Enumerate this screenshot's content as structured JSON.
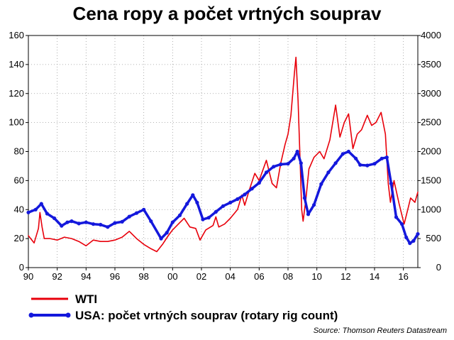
{
  "chart_data": {
    "type": "line",
    "title": "Cena ropy a počet vrtných souprav",
    "source": "Source: Thomson Reuters Datastream",
    "x_tick_labels": [
      "90",
      "92",
      "94",
      "96",
      "98",
      "00",
      "02",
      "04",
      "06",
      "08",
      "10",
      "12",
      "14",
      "16"
    ],
    "x_tick_years": [
      1990,
      1992,
      1994,
      1996,
      1998,
      2000,
      2002,
      2004,
      2006,
      2008,
      2010,
      2012,
      2014,
      2016
    ],
    "xlim": [
      1990,
      2017
    ],
    "y_left": {
      "lim": [
        0,
        160
      ],
      "ticks": [
        "0",
        "20",
        "40",
        "60",
        "80",
        "100",
        "120",
        "140",
        "160"
      ]
    },
    "y_right": {
      "lim": [
        0,
        4000
      ],
      "ticks": [
        "0",
        "500",
        "1000",
        "1500",
        "2000",
        "2500",
        "3000",
        "3500",
        "4000"
      ]
    },
    "grid": true,
    "legend_position": "bottom",
    "series": [
      {
        "name": "WTI",
        "axis": "left",
        "color": "#e8000b",
        "points": [
          [
            1990.0,
            22
          ],
          [
            1990.4,
            17
          ],
          [
            1990.7,
            27
          ],
          [
            1990.8,
            38
          ],
          [
            1990.95,
            28
          ],
          [
            1991.1,
            20
          ],
          [
            1991.5,
            20
          ],
          [
            1992.0,
            19
          ],
          [
            1992.5,
            21
          ],
          [
            1993.0,
            20
          ],
          [
            1993.5,
            18
          ],
          [
            1994.0,
            15
          ],
          [
            1994.5,
            19
          ],
          [
            1995.0,
            18
          ],
          [
            1995.5,
            18
          ],
          [
            1996.0,
            19
          ],
          [
            1996.5,
            21
          ],
          [
            1997.0,
            25
          ],
          [
            1997.5,
            20
          ],
          [
            1998.0,
            16
          ],
          [
            1998.5,
            13
          ],
          [
            1998.9,
            11
          ],
          [
            1999.3,
            16
          ],
          [
            1999.7,
            22
          ],
          [
            2000.0,
            26
          ],
          [
            2000.5,
            31
          ],
          [
            2000.8,
            34
          ],
          [
            2001.2,
            28
          ],
          [
            2001.6,
            27
          ],
          [
            2001.9,
            19
          ],
          [
            2002.3,
            26
          ],
          [
            2002.8,
            29
          ],
          [
            2003.0,
            35
          ],
          [
            2003.2,
            28
          ],
          [
            2003.6,
            30
          ],
          [
            2004.0,
            34
          ],
          [
            2004.5,
            40
          ],
          [
            2004.8,
            50
          ],
          [
            2005.0,
            43
          ],
          [
            2005.3,
            53
          ],
          [
            2005.7,
            65
          ],
          [
            2006.0,
            60
          ],
          [
            2006.5,
            74
          ],
          [
            2006.9,
            58
          ],
          [
            2007.2,
            55
          ],
          [
            2007.5,
            72
          ],
          [
            2007.8,
            85
          ],
          [
            2008.0,
            92
          ],
          [
            2008.2,
            105
          ],
          [
            2008.45,
            135
          ],
          [
            2008.55,
            145
          ],
          [
            2008.7,
            115
          ],
          [
            2008.85,
            70
          ],
          [
            2008.95,
            40
          ],
          [
            2009.05,
            32
          ],
          [
            2009.25,
            48
          ],
          [
            2009.45,
            68
          ],
          [
            2009.8,
            76
          ],
          [
            2010.2,
            80
          ],
          [
            2010.5,
            75
          ],
          [
            2010.9,
            88
          ],
          [
            2011.3,
            112
          ],
          [
            2011.6,
            90
          ],
          [
            2011.9,
            100
          ],
          [
            2012.2,
            106
          ],
          [
            2012.5,
            82
          ],
          [
            2012.8,
            92
          ],
          [
            2013.1,
            95
          ],
          [
            2013.5,
            105
          ],
          [
            2013.8,
            98
          ],
          [
            2014.1,
            100
          ],
          [
            2014.45,
            107
          ],
          [
            2014.75,
            92
          ],
          [
            2014.95,
            58
          ],
          [
            2015.1,
            45
          ],
          [
            2015.35,
            60
          ],
          [
            2015.7,
            44
          ],
          [
            2016.05,
            30
          ],
          [
            2016.3,
            40
          ],
          [
            2016.5,
            48
          ],
          [
            2016.8,
            45
          ],
          [
            2017.0,
            52
          ]
        ]
      },
      {
        "name": "USA: počet vrtných souprav (rotary rig count)",
        "axis": "right",
        "color": "#1418dc",
        "points": [
          [
            1990.0,
            950
          ],
          [
            1990.5,
            1000
          ],
          [
            1990.9,
            1100
          ],
          [
            1991.3,
            930
          ],
          [
            1991.8,
            850
          ],
          [
            1992.3,
            720
          ],
          [
            1992.7,
            780
          ],
          [
            1993.0,
            800
          ],
          [
            1993.5,
            760
          ],
          [
            1994.0,
            780
          ],
          [
            1994.5,
            750
          ],
          [
            1995.0,
            740
          ],
          [
            1995.5,
            700
          ],
          [
            1996.0,
            770
          ],
          [
            1996.5,
            790
          ],
          [
            1997.0,
            880
          ],
          [
            1997.5,
            940
          ],
          [
            1998.0,
            1000
          ],
          [
            1998.5,
            800
          ],
          [
            1999.2,
            500
          ],
          [
            1999.6,
            600
          ],
          [
            2000.0,
            780
          ],
          [
            2000.5,
            900
          ],
          [
            2001.0,
            1100
          ],
          [
            2001.4,
            1250
          ],
          [
            2001.7,
            1120
          ],
          [
            2002.1,
            830
          ],
          [
            2002.5,
            860
          ],
          [
            2003.0,
            960
          ],
          [
            2003.5,
            1060
          ],
          [
            2004.0,
            1120
          ],
          [
            2004.5,
            1180
          ],
          [
            2005.0,
            1260
          ],
          [
            2005.5,
            1360
          ],
          [
            2006.0,
            1460
          ],
          [
            2006.5,
            1640
          ],
          [
            2007.0,
            1740
          ],
          [
            2007.5,
            1780
          ],
          [
            2008.0,
            1790
          ],
          [
            2008.4,
            1880
          ],
          [
            2008.65,
            2000
          ],
          [
            2008.9,
            1800
          ],
          [
            2009.15,
            1200
          ],
          [
            2009.4,
            920
          ],
          [
            2009.8,
            1080
          ],
          [
            2010.3,
            1440
          ],
          [
            2010.8,
            1640
          ],
          [
            2011.3,
            1800
          ],
          [
            2011.8,
            1960
          ],
          [
            2012.2,
            2000
          ],
          [
            2012.7,
            1880
          ],
          [
            2013.0,
            1770
          ],
          [
            2013.5,
            1760
          ],
          [
            2014.0,
            1790
          ],
          [
            2014.5,
            1880
          ],
          [
            2014.85,
            1900
          ],
          [
            2015.15,
            1450
          ],
          [
            2015.5,
            870
          ],
          [
            2015.9,
            750
          ],
          [
            2016.2,
            520
          ],
          [
            2016.45,
            420
          ],
          [
            2016.7,
            460
          ],
          [
            2017.0,
            580
          ]
        ]
      }
    ]
  }
}
